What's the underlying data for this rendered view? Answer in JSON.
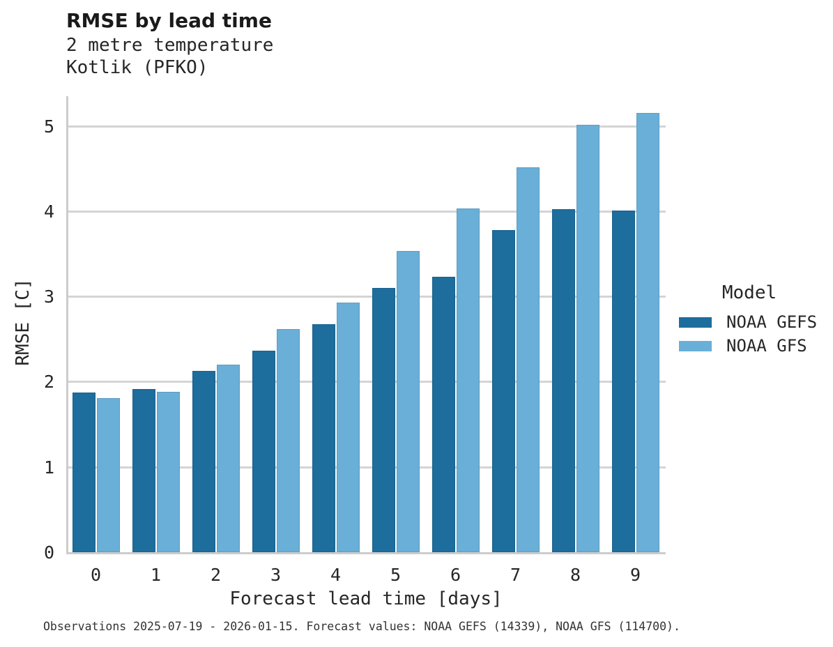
{
  "chart_data": {
    "type": "bar",
    "title": "RMSE by lead time",
    "subtitle": [
      "2 metre temperature",
      "Kotlik (PFKO)"
    ],
    "xlabel": "Forecast lead time [days]",
    "ylabel": "RMSE [C]",
    "categories": [
      "0",
      "1",
      "2",
      "3",
      "4",
      "5",
      "6",
      "7",
      "8",
      "9"
    ],
    "series": [
      {
        "name": "NOAA GEFS",
        "color": "#1d6d9d",
        "values": [
          1.87,
          1.91,
          2.13,
          2.36,
          2.67,
          3.1,
          3.23,
          3.78,
          4.02,
          4.01
        ]
      },
      {
        "name": "NOAA GFS",
        "color": "#69afd8",
        "values": [
          1.81,
          1.88,
          2.2,
          2.62,
          2.93,
          3.53,
          4.03,
          4.51,
          5.01,
          5.15
        ]
      }
    ],
    "ylim": [
      0,
      5.33
    ],
    "yticks": [
      0,
      1,
      2,
      3,
      4,
      5
    ],
    "grid": "horizontal-only",
    "gridline_color": "#d4d4d4",
    "legend": {
      "title": "Model",
      "position": "center-right"
    }
  },
  "footer": "Observations 2025-07-19 - 2026-01-15. Forecast values: NOAA GEFS (14339), NOAA GFS (114700)."
}
